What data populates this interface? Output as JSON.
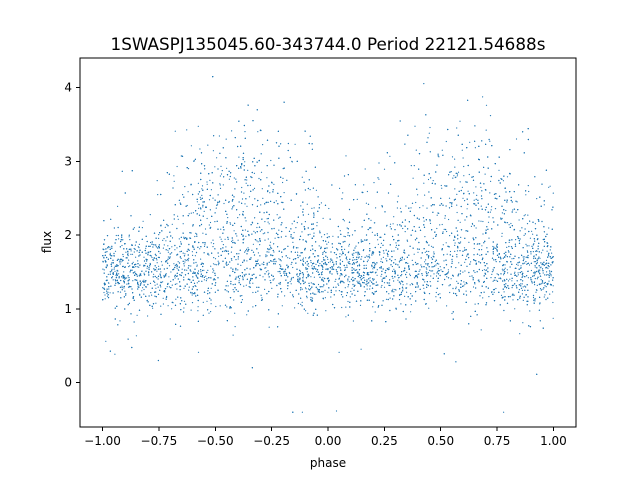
{
  "chart_data": {
    "type": "scatter",
    "title": "1SWASPJ135045.60-343744.0 Period 22121.54688s",
    "xlabel": "phase",
    "ylabel": "flux",
    "xlim": [
      -1.1,
      1.1
    ],
    "ylim": [
      -0.6,
      4.4
    ],
    "xticks": [
      -1.0,
      -0.75,
      -0.5,
      -0.25,
      0.0,
      0.25,
      0.5,
      0.75,
      1.0
    ],
    "xtick_labels": [
      "−1.00",
      "−0.75",
      "−0.50",
      "−0.25",
      "0.00",
      "0.25",
      "0.50",
      "0.75",
      "1.00"
    ],
    "yticks": [
      0,
      1,
      2,
      3,
      4
    ],
    "ytick_labels": [
      "0",
      "1",
      "2",
      "3",
      "4"
    ],
    "grid": false,
    "series": [
      {
        "color": "#1f77b4",
        "marker_size": 0.6,
        "x_range": [
          -1.0,
          1.0
        ],
        "baseline_flux": 1.5,
        "hump_peak_flux": 2.4,
        "hump_center_phases": [
          -0.4,
          0.6
        ],
        "hump_width": 0.28,
        "scatter_flux": 0.25,
        "outlier_min_flux": -0.4,
        "outlier_max_flux": 4.15
      }
    ]
  }
}
